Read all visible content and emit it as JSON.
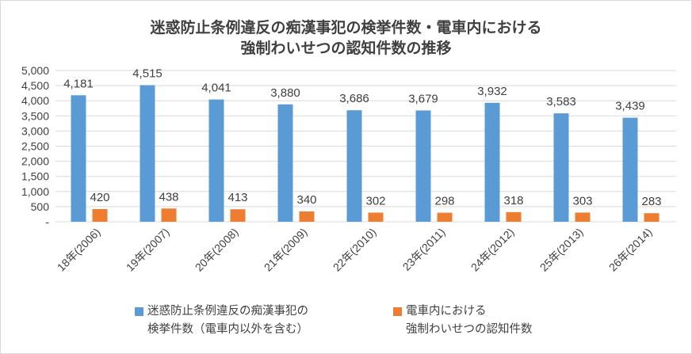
{
  "chart_data": {
    "type": "bar",
    "title": "迷惑防止条例違反の痴漢事犯の検挙件数・電車内における強制わいせつの認知件数の推移",
    "title_lines": [
      "迷惑防止条例違反の痴漢事犯の検挙件数・電車内における",
      "強制わいせつの認知件数の推移"
    ],
    "categories": [
      "18年(2006)",
      "19年(2007)",
      "20年(2008)",
      "21年(2009)",
      "22年(2010)",
      "23年(2011)",
      "24年(2012)",
      "25年(2013)",
      "26年(2014)"
    ],
    "series": [
      {
        "name": "迷惑防止条例違反の痴漢事犯の検挙件数（電車内以外を含む）",
        "legend_lines": [
          "迷惑防止条例違反の痴漢事犯の",
          "検挙件数（電車内以外を含む）"
        ],
        "color": "#5b9bd5",
        "values": [
          4181,
          4515,
          4041,
          3880,
          3686,
          3679,
          3932,
          3583,
          3439
        ],
        "labels": [
          "4,181",
          "4,515",
          "4,041",
          "3,880",
          "3,686",
          "3,679",
          "3,932",
          "3,583",
          "3,439"
        ]
      },
      {
        "name": "電車内における強制わいせつの認知件数",
        "legend_lines": [
          "電車内における",
          "強制わいせつの認知件数"
        ],
        "color": "#ed7d31",
        "values": [
          420,
          438,
          413,
          340,
          302,
          298,
          318,
          303,
          283
        ],
        "labels": [
          "420",
          "438",
          "413",
          "340",
          "302",
          "298",
          "318",
          "303",
          "283"
        ]
      }
    ],
    "ylim": [
      0,
      5000
    ],
    "yticks": [
      0,
      500,
      1000,
      1500,
      2000,
      2500,
      3000,
      3500,
      4000,
      4500,
      5000
    ],
    "ytick_labels": [
      "-",
      "500",
      "1,000",
      "1,500",
      "2,000",
      "2,500",
      "3,000",
      "3,500",
      "4,000",
      "4,500",
      "5,000"
    ],
    "grid": true,
    "legend_position": "bottom",
    "xlabel": "",
    "ylabel": ""
  }
}
